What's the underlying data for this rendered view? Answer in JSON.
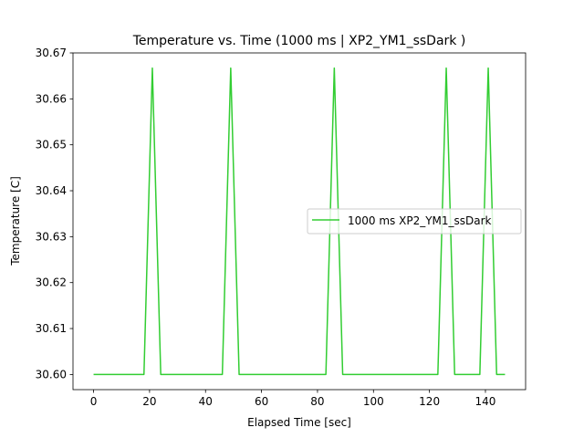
{
  "chart_data": {
    "type": "line",
    "title": "Temperature vs. Time (1000 ms | XP2_YM1_ssDark )",
    "xlabel": "Elapsed Time [sec]",
    "ylabel": "Temperature [C]",
    "xlim": [
      -7.35,
      154.35
    ],
    "ylim": [
      30.5967,
      30.67
    ],
    "xticks": [
      0,
      20,
      40,
      60,
      80,
      100,
      120,
      140
    ],
    "yticks": [
      30.6,
      30.61,
      30.62,
      30.63,
      30.64,
      30.65,
      30.66,
      30.67
    ],
    "ytick_labels": [
      "30.60",
      "30.61",
      "30.62",
      "30.63",
      "30.64",
      "30.65",
      "30.66",
      "30.67"
    ],
    "grid": false,
    "legend_position": "center-right",
    "series": [
      {
        "name": "1000 ms XP2_YM1_ssDark",
        "color": "#32cd32",
        "x": [
          0,
          18,
          21,
          24,
          46,
          49,
          52,
          83,
          86,
          89,
          123,
          126,
          129,
          138,
          141,
          144,
          147
        ],
        "y": [
          30.6,
          30.6,
          30.6667,
          30.6,
          30.6,
          30.6667,
          30.6,
          30.6,
          30.6667,
          30.6,
          30.6,
          30.6667,
          30.6,
          30.6,
          30.6667,
          30.6,
          30.6
        ]
      }
    ]
  }
}
